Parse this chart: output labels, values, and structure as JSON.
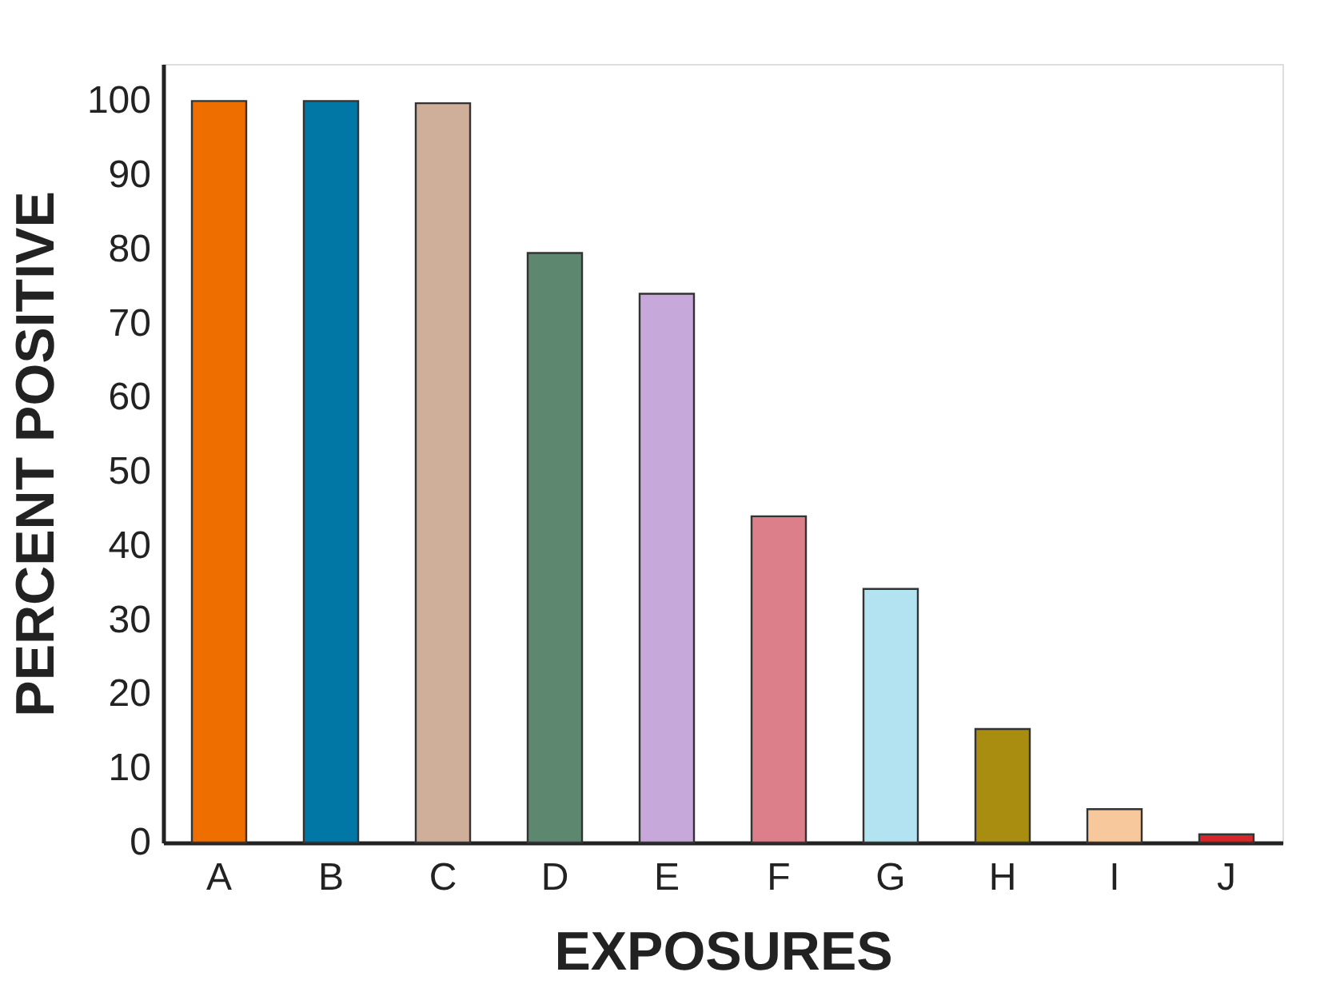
{
  "chart_data": {
    "type": "bar",
    "xlabel": "EXPOSURES",
    "ylabel": "PERCENT POSITIVE",
    "categories": [
      "A",
      "B",
      "C",
      "D",
      "E",
      "F",
      "G",
      "H",
      "I",
      "J"
    ],
    "values": [
      100,
      100,
      99.7,
      79.5,
      74,
      44,
      34.2,
      15.3,
      4.5,
      1.1
    ],
    "colors": [
      "#ee6f00",
      "#0077a5",
      "#cfae9a",
      "#5e8770",
      "#c6a8db",
      "#dc7f8a",
      "#b3e3f0",
      "#a88d10",
      "#f8c89d",
      "#d7262c"
    ],
    "ylim": [
      0,
      105
    ],
    "yticks": [
      0,
      10,
      20,
      30,
      40,
      50,
      60,
      70,
      80,
      90,
      100
    ],
    "grid": false,
    "legend": false
  }
}
